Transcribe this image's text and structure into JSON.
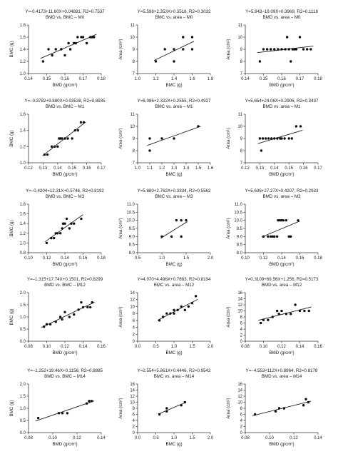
{
  "chart_data": [
    {
      "type": "scatter",
      "equation": "Y=-0.4173+11.60X+0.04891, R2=0.7537",
      "title": "BMD vs. BMC – M0",
      "xlabel": "BMD (g/cm²)",
      "ylabel": "BMC (g)",
      "xlim": [
        0.14,
        0.18
      ],
      "ylim": [
        1.0,
        1.8
      ],
      "xticks": [
        0.14,
        0.15,
        0.16,
        0.17,
        0.18
      ],
      "yticks": [
        1.0,
        1.2,
        1.4,
        1.6,
        1.8
      ],
      "xtick_labels": [
        "0.14",
        "0.15",
        "0.16",
        "0.17",
        "0.18"
      ],
      "ytick_labels": [
        "1.0",
        "1.2",
        "1.4",
        "1.6",
        "1.8"
      ],
      "x": [
        0.148,
        0.151,
        0.153,
        0.155,
        0.158,
        0.16,
        0.162,
        0.163,
        0.165,
        0.166,
        0.167,
        0.169,
        0.17,
        0.172,
        0.174,
        0.175,
        0.176
      ],
      "y": [
        1.2,
        1.4,
        1.3,
        1.4,
        1.4,
        1.3,
        1.5,
        1.4,
        1.5,
        1.5,
        1.6,
        1.6,
        1.6,
        1.5,
        1.6,
        1.6,
        1.6
      ]
    },
    {
      "type": "scatter",
      "equation": "Y=5.598+2.353X+0.3516, R2=0.3032",
      "title": "BMC vs. area – M0",
      "xlabel": "BMC (g)",
      "ylabel": "Area (cm²)",
      "xlim": [
        1.0,
        1.8
      ],
      "ylim": [
        7,
        11
      ],
      "xticks": [
        1.0,
        1.2,
        1.4,
        1.6,
        1.8
      ],
      "yticks": [
        7,
        8,
        9,
        10,
        11
      ],
      "xtick_labels": [
        "1.0",
        "1.2",
        "1.4",
        "1.6",
        "1.8"
      ],
      "ytick_labels": [
        "7",
        "8",
        "9",
        "10",
        "11"
      ],
      "x": [
        1.2,
        1.3,
        1.4,
        1.4,
        1.5,
        1.5,
        1.6,
        1.6
      ],
      "y": [
        8,
        9,
        8,
        9,
        9,
        10,
        9,
        10
      ]
    },
    {
      "type": "scatter",
      "equation": "Y=5.943–19.09X+0.3969, R2=0.1118",
      "title": "BMD vs. area – M0",
      "xlabel": "BMD (g/cm²)",
      "ylabel": "Area (cm²)",
      "xlim": [
        0.14,
        0.18
      ],
      "ylim": [
        7,
        11
      ],
      "xticks": [
        0.14,
        0.15,
        0.16,
        0.17,
        0.18
      ],
      "yticks": [
        7,
        8,
        9,
        10,
        11
      ],
      "xtick_labels": [
        "0.14",
        "0.15",
        "0.16",
        "0.17",
        "0.18"
      ],
      "ytick_labels": [
        "7",
        "8",
        "9",
        "10",
        "11"
      ],
      "x": [
        0.148,
        0.15,
        0.152,
        0.154,
        0.156,
        0.158,
        0.16,
        0.162,
        0.163,
        0.164,
        0.165,
        0.166,
        0.167,
        0.168,
        0.17,
        0.172,
        0.174,
        0.176
      ],
      "y": [
        8,
        9,
        9,
        9,
        9,
        9,
        9,
        9,
        10,
        9,
        8,
        9,
        9,
        9,
        10,
        9,
        9,
        9
      ]
    },
    {
      "type": "scatter",
      "equation": "Y=–0.3782+9.880X+0.03538, R2=0.8935",
      "title": "BMD vs. BMC – M1",
      "xlabel": "BMD (g/cm²)",
      "ylabel": "BMC (g)",
      "xlim": [
        0.12,
        0.17
      ],
      "ylim": [
        1.0,
        1.6
      ],
      "xticks": [
        0.12,
        0.13,
        0.14,
        0.15,
        0.16,
        0.17
      ],
      "yticks": [
        1.0,
        1.2,
        1.4,
        1.6
      ],
      "xtick_labels": [
        "0.12",
        "0.13",
        "0.14",
        "0.15",
        "0.16",
        "0.17"
      ],
      "ytick_labels": [
        "1.0",
        "1.2",
        "1.4",
        "1.6"
      ],
      "x": [
        0.131,
        0.133,
        0.136,
        0.138,
        0.14,
        0.141,
        0.142,
        0.143,
        0.145,
        0.147,
        0.15,
        0.152,
        0.154,
        0.156,
        0.158
      ],
      "y": [
        1.1,
        1.1,
        1.2,
        1.2,
        1.2,
        1.3,
        1.3,
        1.3,
        1.3,
        1.3,
        1.3,
        1.4,
        1.4,
        1.5,
        1.5
      ]
    },
    {
      "type": "scatter",
      "equation": "Y=6.086+2.322X+0.2555, R2=0.4927",
      "title": "BMC vs. area – M1",
      "xlabel": "BMC (g)",
      "ylabel": "Area (cm²)",
      "xlim": [
        1.0,
        1.6
      ],
      "ylim": [
        7,
        11
      ],
      "xticks": [
        1.0,
        1.1,
        1.2,
        1.3,
        1.4,
        1.5,
        1.6
      ],
      "yticks": [
        7,
        8,
        9,
        10,
        11
      ],
      "xtick_labels": [
        "1.0",
        "1.1",
        "1.2",
        "1.3",
        "1.4",
        "1.5",
        "1.6"
      ],
      "ytick_labels": [
        "7",
        "8",
        "9",
        "10",
        "11"
      ],
      "x": [
        1.1,
        1.1,
        1.2,
        1.3,
        1.5
      ],
      "y": [
        8,
        9,
        9,
        9,
        10
      ]
    },
    {
      "type": "scatter",
      "equation": "Y=5.654+24.06X+0.2906, R2=0.3437",
      "title": "BMD vs. area – M1",
      "xlabel": "BMD (g/cm²)",
      "ylabel": "Area (cm²)",
      "xlim": [
        0.12,
        0.17
      ],
      "ylim": [
        7,
        11
      ],
      "xticks": [
        0.12,
        0.13,
        0.14,
        0.15,
        0.16,
        0.17
      ],
      "yticks": [
        7,
        8,
        9,
        10,
        11
      ],
      "xtick_labels": [
        "0.12",
        "0.13",
        "0.14",
        "0.15",
        "0.16",
        "0.17"
      ],
      "ytick_labels": [
        "7",
        "8",
        "9",
        "10",
        "11"
      ],
      "x": [
        0.13,
        0.131,
        0.132,
        0.134,
        0.136,
        0.138,
        0.14,
        0.142,
        0.144,
        0.145,
        0.147,
        0.15,
        0.152,
        0.155,
        0.158
      ],
      "y": [
        9,
        8,
        9,
        9,
        9,
        9,
        9,
        9,
        9,
        9,
        9,
        9,
        9,
        10,
        10
      ]
    },
    {
      "type": "scatter",
      "equation": "Y=–0.4204+12.31X+0.5746, R2=0.8192",
      "title": "BMD vs. BMC – M3",
      "xlabel": "BMD (g/cm²)",
      "ylabel": "BMC (g)",
      "xlim": [
        0.1,
        0.18
      ],
      "ylim": [
        0.8,
        1.8
      ],
      "xticks": [
        0.1,
        0.12,
        0.14,
        0.16,
        0.18
      ],
      "yticks": [
        0.8,
        1.0,
        1.2,
        1.4,
        1.6,
        1.8
      ],
      "xtick_labels": [
        "0.10",
        "0.12",
        "0.14",
        "0.16",
        "0.18"
      ],
      "ytick_labels": [
        "0.8",
        "1.0",
        "1.2",
        "1.4",
        "1.6",
        "1.8"
      ],
      "x": [
        0.12,
        0.125,
        0.128,
        0.13,
        0.132,
        0.135,
        0.137,
        0.138,
        0.14,
        0.142,
        0.145,
        0.147,
        0.15,
        0.158
      ],
      "y": [
        1.0,
        1.1,
        1.1,
        1.2,
        1.2,
        1.2,
        1.3,
        1.4,
        1.4,
        1.5,
        1.3,
        1.4,
        1.4,
        1.5
      ]
    },
    {
      "type": "scatter",
      "equation": "Y=5.880+2.762X+0.3334, R2=0.5562",
      "title": "BMC vs. area – M3",
      "xlabel": "BMC (g)",
      "ylabel": "Area (cm²)",
      "xlim": [
        0.5,
        2.0
      ],
      "ylim": [
        8.0,
        11.0
      ],
      "xticks": [
        0.5,
        1.0,
        1.5,
        2.0
      ],
      "yticks": [
        8.0,
        8.5,
        9.0,
        9.5,
        10.0,
        10.5,
        11.0
      ],
      "xtick_labels": [
        "0.5",
        "1.0",
        "1.5",
        "2.0"
      ],
      "ytick_labels": [
        "8.0",
        "8.5",
        "9.0",
        "9.5",
        "10.0",
        "10.5",
        "11.0"
      ],
      "x": [
        1.0,
        1.2,
        1.3,
        1.4,
        1.4,
        1.5
      ],
      "y": [
        9.0,
        9.0,
        10.0,
        9.0,
        10.0,
        10.0
      ]
    },
    {
      "type": "scatter",
      "equation": "Y=5.636+27.27X+0.4207, R2=0.2933",
      "title": "BMD vs. area – M3",
      "xlabel": "BMD (g/cm²)",
      "ylabel": "Area (cm²)",
      "xlim": [
        0.1,
        0.18
      ],
      "ylim": [
        8.0,
        11.0
      ],
      "xticks": [
        0.1,
        0.12,
        0.14,
        0.16,
        0.18
      ],
      "yticks": [
        8.0,
        8.5,
        9.0,
        9.5,
        10.0,
        10.5,
        11.0
      ],
      "xtick_labels": [
        "0.10",
        "0.12",
        "0.14",
        "0.16",
        "0.18"
      ],
      "ytick_labels": [
        "8.0",
        "8.5",
        "9.0",
        "9.5",
        "10.0",
        "10.5",
        "11.0"
      ],
      "x": [
        0.12,
        0.125,
        0.128,
        0.13,
        0.132,
        0.135,
        0.136,
        0.138,
        0.14,
        0.142,
        0.145,
        0.148,
        0.15,
        0.158
      ],
      "y": [
        9.0,
        9.0,
        9.0,
        9.0,
        9.0,
        9.0,
        10.0,
        10.0,
        10.0,
        10.0,
        10.0,
        9.0,
        9.0,
        10.0
      ]
    },
    {
      "type": "scatter",
      "equation": "Y=–1.315+17.74X+0.1501, R2=0.8299",
      "title": "BMD vs. BMC – M12",
      "xlabel": "BMD (g/cm²)",
      "ylabel": "BMC (g)",
      "xlim": [
        0.08,
        0.16
      ],
      "ylim": [
        0.0,
        2.0
      ],
      "xticks": [
        0.08,
        0.1,
        0.12,
        0.14,
        0.16
      ],
      "yticks": [
        0.0,
        0.5,
        1.0,
        1.5,
        2.0
      ],
      "xtick_labels": [
        "0.08",
        "0.10",
        "0.12",
        "0.14",
        "0.16"
      ],
      "ytick_labels": [
        "0.0",
        "0.5",
        "1.0",
        "1.5",
        "2.0"
      ],
      "x": [
        0.097,
        0.1,
        0.104,
        0.11,
        0.115,
        0.117,
        0.12,
        0.125,
        0.13,
        0.135,
        0.138,
        0.14,
        0.145,
        0.148,
        0.15
      ],
      "y": [
        0.6,
        0.7,
        0.7,
        0.8,
        1.0,
        0.9,
        1.2,
        1.0,
        1.1,
        1.3,
        1.6,
        1.4,
        1.4,
        1.4,
        1.6
      ]
    },
    {
      "type": "scatter",
      "equation": "Y=4.070+4.496X+0.7683, R2=0.8194",
      "title": "BMC vs. area – M12",
      "xlabel": "BMC (g)",
      "ylabel": "Area (cm²)",
      "xlim": [
        0.0,
        2.0
      ],
      "ylim": [
        0,
        14
      ],
      "xticks": [
        0.0,
        0.5,
        1.0,
        1.5,
        2.0
      ],
      "yticks": [
        0,
        2,
        4,
        6,
        8,
        10,
        12,
        14
      ],
      "xtick_labels": [
        "0.0",
        "0.5",
        "1.0",
        "1.5",
        "2.0"
      ],
      "ytick_labels": [
        "0",
        "2",
        "4",
        "6",
        "8",
        "10",
        "12",
        "14"
      ],
      "x": [
        0.6,
        0.7,
        0.8,
        0.9,
        1.0,
        1.0,
        1.1,
        1.2,
        1.3,
        1.4,
        1.5,
        1.6
      ],
      "y": [
        6,
        7,
        8,
        8,
        9,
        8,
        9,
        10,
        9,
        10,
        11,
        13
      ]
    },
    {
      "type": "scatter",
      "equation": "Y=0.3109+69.56X+1.256, R2=0.5173",
      "title": "BMD vs. area – M12",
      "xlabel": "BMD (g/cm²)",
      "ylabel": "Area (cm²)",
      "xlim": [
        0.08,
        0.16
      ],
      "ylim": [
        0,
        16
      ],
      "xticks": [
        0.08,
        0.1,
        0.12,
        0.14,
        0.16
      ],
      "yticks": [
        0,
        2,
        4,
        6,
        8,
        10,
        12,
        14,
        16
      ],
      "xtick_labels": [
        "0.08",
        "0.10",
        "0.12",
        "0.14",
        "0.16"
      ],
      "ytick_labels": [
        "0",
        "2",
        "4",
        "6",
        "8",
        "10",
        "12",
        "14",
        "16"
      ],
      "x": [
        0.097,
        0.1,
        0.105,
        0.11,
        0.115,
        0.117,
        0.12,
        0.125,
        0.13,
        0.135,
        0.14,
        0.145,
        0.15
      ],
      "y": [
        6,
        7,
        7,
        8,
        10,
        9,
        10,
        9,
        9,
        12,
        10,
        10,
        10
      ]
    },
    {
      "type": "scatter",
      "equation": "Y=–1.252+19.46X+0.1156, R2=0.8885",
      "title": "BMD vs. BMC – M14",
      "xlabel": "BMD (g/cm²)",
      "ylabel": "BMC (g)",
      "xlim": [
        0.08,
        0.14
      ],
      "ylim": [
        0.0,
        2.0
      ],
      "xticks": [
        0.08,
        0.1,
        0.12,
        0.14
      ],
      "yticks": [
        0.0,
        0.5,
        1.0,
        1.5,
        2.0
      ],
      "xtick_labels": [
        "0.08",
        "0.10",
        "0.12",
        "0.14"
      ],
      "ytick_labels": [
        "0.0",
        "0.5",
        "1.0",
        "1.5",
        "2.0"
      ],
      "x": [
        0.088,
        0.105,
        0.108,
        0.112,
        0.128,
        0.13,
        0.132
      ],
      "y": [
        0.6,
        0.8,
        0.8,
        0.8,
        1.2,
        1.3,
        1.3
      ]
    },
    {
      "type": "scatter",
      "equation": "Y=2.554+5.861X+0.4446, R2=0.9542",
      "title": "BMC vs. area – M14",
      "xlabel": "BMC (g)",
      "ylabel": "Area (cm²)",
      "xlim": [
        0.0,
        2.0
      ],
      "ylim": [
        0,
        16
      ],
      "xticks": [
        0.0,
        0.5,
        1.0,
        1.5,
        2.0
      ],
      "yticks": [
        0,
        2,
        4,
        6,
        8,
        10,
        12,
        14,
        16
      ],
      "xtick_labels": [
        "0.0",
        "0.5",
        "1.0",
        "1.5",
        "2.0"
      ],
      "ytick_labels": [
        "0",
        "2",
        "4",
        "6",
        "8",
        "10",
        "12",
        "14",
        "16"
      ],
      "x": [
        0.6,
        0.8,
        0.8,
        1.2,
        1.3
      ],
      "y": [
        6,
        7,
        8,
        9,
        10
      ]
    },
    {
      "type": "scatter",
      "equation": "Y=–4.553+112X+0.8864, R2=0.8178",
      "title": "BMD vs. area – M14",
      "xlabel": "BMD (g/cm²)",
      "ylabel": "Area (cm²)",
      "xlim": [
        0.08,
        0.14
      ],
      "ylim": [
        0,
        16
      ],
      "xticks": [
        0.08,
        0.1,
        0.12,
        0.14
      ],
      "yticks": [
        0,
        2,
        4,
        6,
        8,
        10,
        12,
        14,
        16
      ],
      "xtick_labels": [
        "0.08",
        "0.10",
        "0.12",
        "0.14"
      ],
      "ytick_labels": [
        "0",
        "2",
        "4",
        "6",
        "8",
        "10",
        "12",
        "14",
        "16"
      ],
      "x": [
        0.088,
        0.105,
        0.108,
        0.112,
        0.128,
        0.13,
        0.132
      ],
      "y": [
        6,
        7,
        8,
        8,
        9,
        11,
        10
      ]
    }
  ]
}
